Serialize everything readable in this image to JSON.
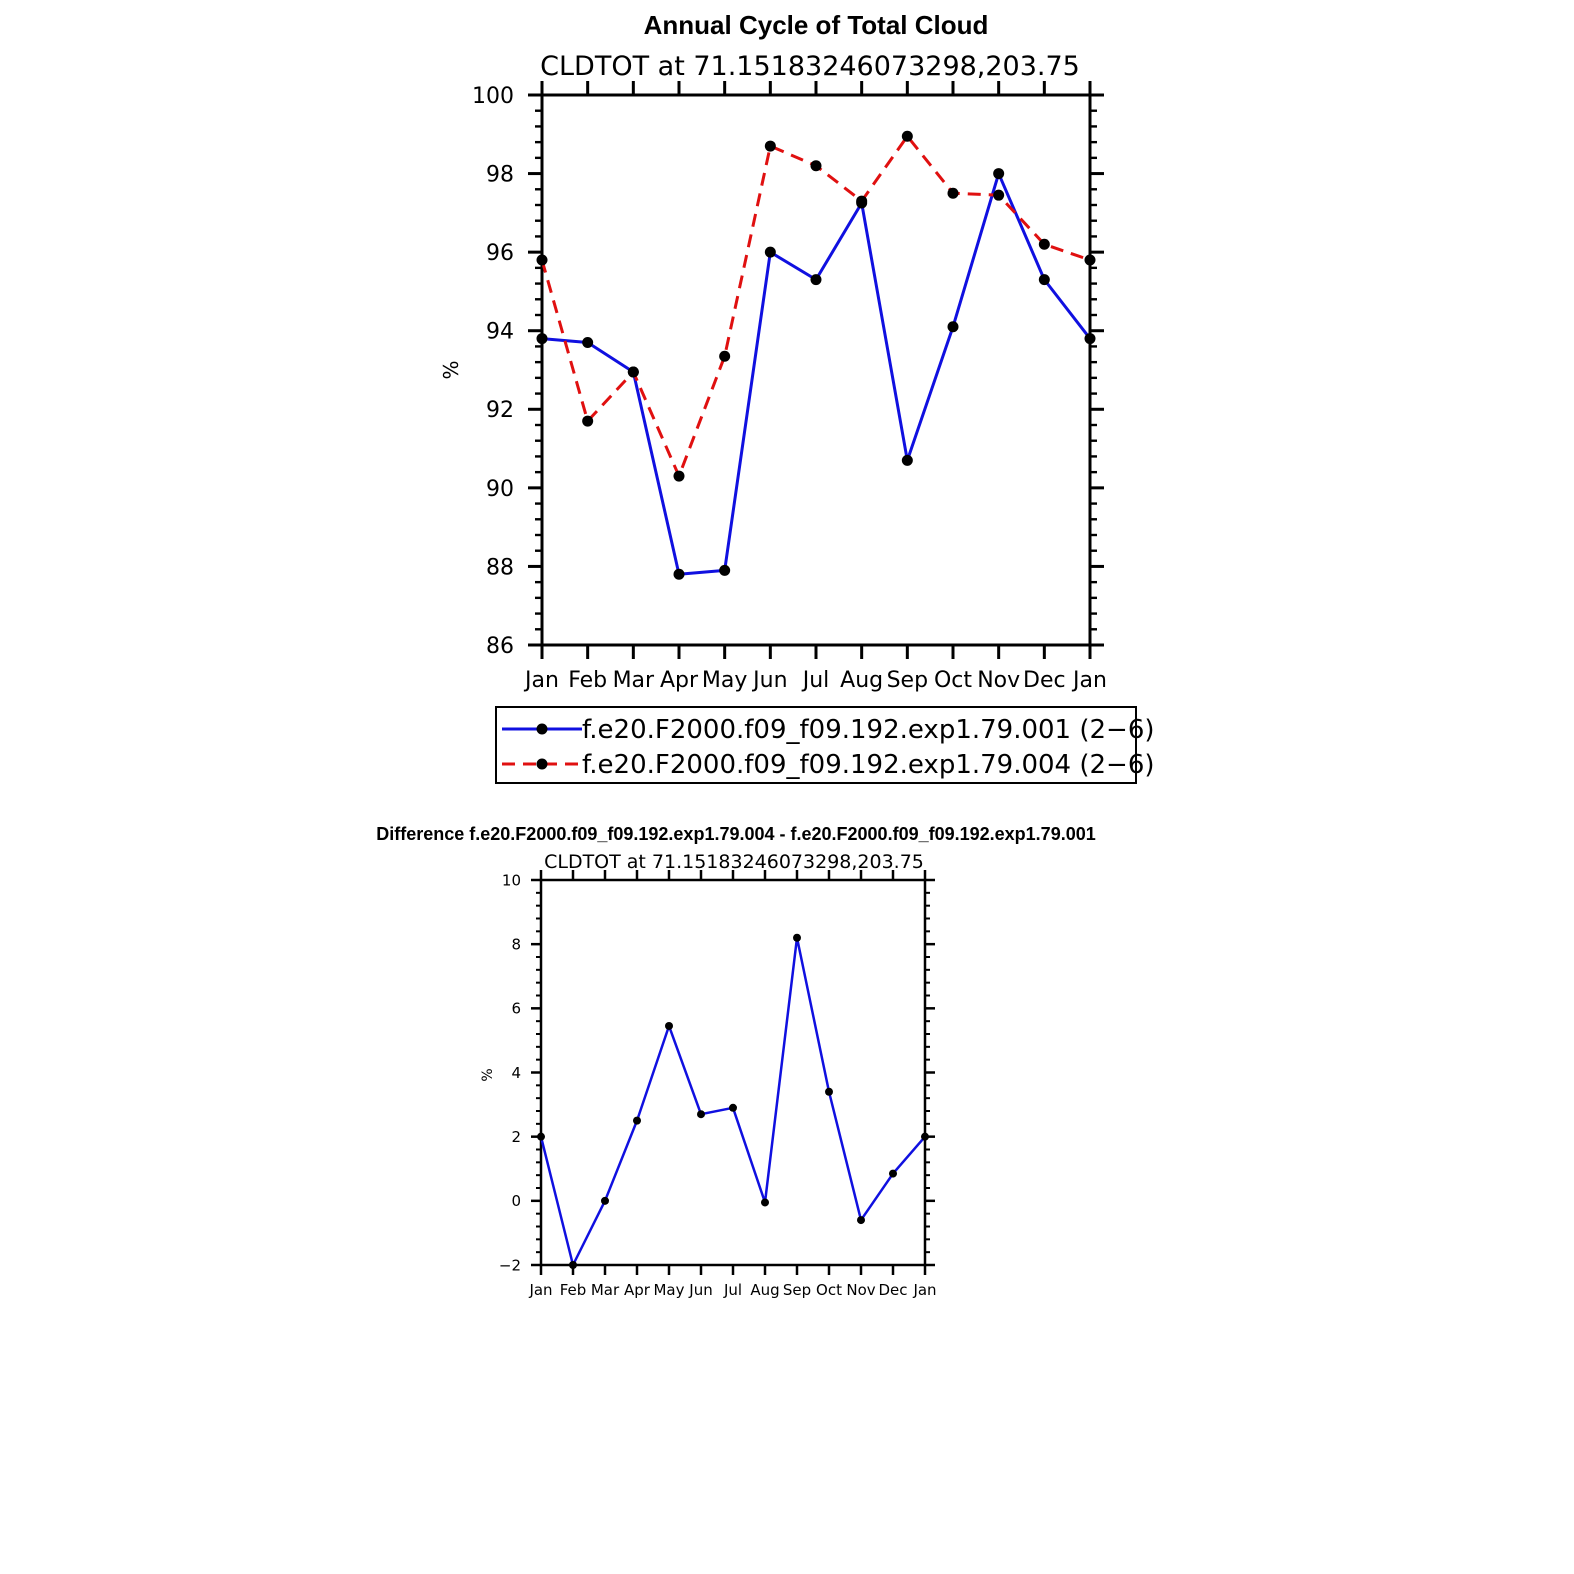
{
  "chart_data": [
    {
      "type": "line",
      "title": "Annual Cycle of Total Cloud",
      "subtitle": "CLDTOT at 71.15183246073298,203.75",
      "ylabel": "%",
      "xlabel": "",
      "categories": [
        "Jan",
        "Feb",
        "Mar",
        "Apr",
        "May",
        "Jun",
        "Jul",
        "Aug",
        "Sep",
        "Oct",
        "Nov",
        "Dec",
        "Jan"
      ],
      "ylim": [
        86,
        100
      ],
      "yticks": [
        "86",
        "88",
        "90",
        "92",
        "94",
        "96",
        "98",
        "100"
      ],
      "series": [
        {
          "name": "f.e20.F2000.f09_f09.192.exp1.79.001 (2−6)",
          "color": "#1010e0",
          "dash": "solid",
          "values": [
            93.8,
            93.7,
            92.95,
            87.8,
            87.9,
            96.0,
            95.3,
            97.25,
            90.7,
            94.1,
            98.0,
            95.3,
            93.8
          ]
        },
        {
          "name": "f.e20.F2000.f09_f09.192.exp1.79.004 (2−6)",
          "color": "#e01010",
          "dash": "dashed",
          "values": [
            95.8,
            91.7,
            92.95,
            90.3,
            93.35,
            98.7,
            98.2,
            97.3,
            98.95,
            97.5,
            97.45,
            96.2,
            95.8
          ]
        }
      ]
    },
    {
      "type": "line",
      "title": "Difference f.e20.F2000.f09_f09.192.exp1.79.004 - f.e20.F2000.f09_f09.192.exp1.79.001",
      "subtitle": "CLDTOT at 71.15183246073298,203.75",
      "ylabel": "%",
      "xlabel": "",
      "categories": [
        "Jan",
        "Feb",
        "Mar",
        "Apr",
        "May",
        "Jun",
        "Jul",
        "Aug",
        "Sep",
        "Oct",
        "Nov",
        "Dec",
        "Jan"
      ],
      "ylim": [
        -2,
        10
      ],
      "yticks": [
        "−2",
        "0",
        "2",
        "4",
        "6",
        "8",
        "10"
      ],
      "series": [
        {
          "name": "difference",
          "color": "#1010e0",
          "dash": "solid",
          "values": [
            2.0,
            -2.0,
            0.0,
            2.5,
            5.45,
            2.7,
            2.9,
            -0.05,
            8.2,
            3.4,
            -0.6,
            0.85,
            2.0
          ]
        }
      ]
    }
  ]
}
